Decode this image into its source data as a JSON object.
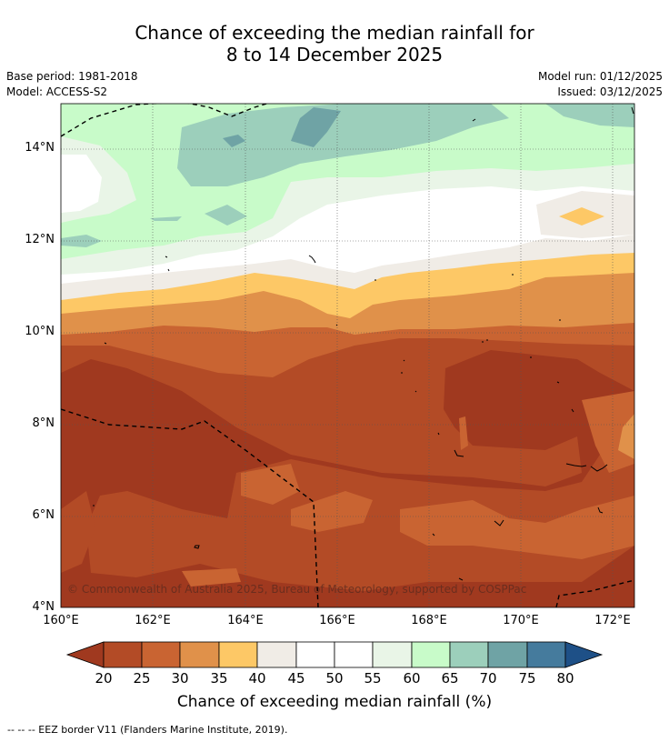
{
  "title": {
    "line1": "Chance of exceeding the median rainfall for",
    "line2": "8 to 14 December 2025"
  },
  "meta": {
    "base_period": "Base period: 1981-2018",
    "model": "Model: ACCESS-S2",
    "model_run": "Model run: 01/12/2025",
    "issued": "Issued: 03/12/2025"
  },
  "axes": {
    "y_ticks": [
      "14°N",
      "12°N",
      "10°N",
      "8°N",
      "6°N",
      "4°N"
    ],
    "x_ticks": [
      "160°E",
      "162°E",
      "164°E",
      "166°E",
      "168°E",
      "170°E",
      "172°E"
    ]
  },
  "colorbar": {
    "labels": [
      "20",
      "25",
      "30",
      "35",
      "40",
      "45",
      "50",
      "55",
      "60",
      "65",
      "70",
      "75",
      "80"
    ],
    "colors": [
      "#a0391f",
      "#b34b26",
      "#c96432",
      "#e0914a",
      "#fdc866",
      "#f0ece6",
      "#ffffff",
      "#ffffff",
      "#e9f5e7",
      "#c8fbc9",
      "#9ccfbb",
      "#6fa3a5",
      "#457b9d",
      "#1e5087"
    ],
    "title": "Chance of exceeding median rainfall (%)"
  },
  "copyright": "© Commonwealth of Australia 2025, Bureau of Meteorology, supported by COSPPac",
  "footer": "-- -- -- EEZ border V11 (Flanders Marine Institute, 2019)."
}
